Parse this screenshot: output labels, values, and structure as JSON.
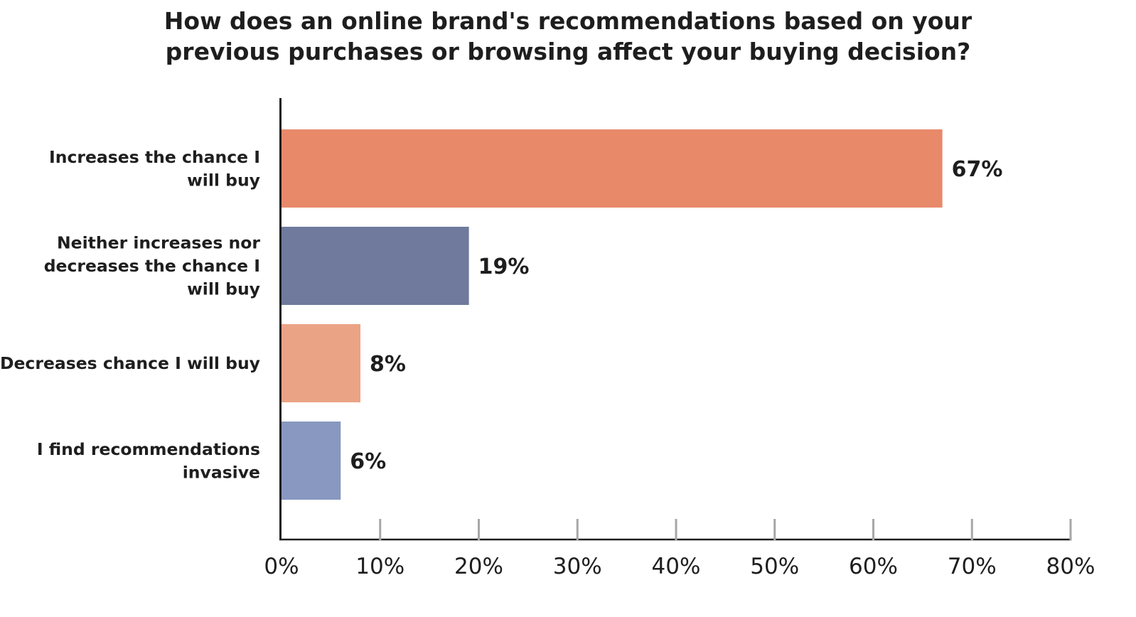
{
  "chart_data": {
    "type": "bar",
    "orientation": "horizontal",
    "title_lines": [
      "How does an online brand's recommendations based on your",
      "previous purchases or browsing affect your buying decision?"
    ],
    "categories": [
      [
        "Increases the chance I",
        "will buy"
      ],
      [
        "Neither increases nor",
        "decreases the chance I",
        "will buy"
      ],
      [
        "Decreases chance I will buy"
      ],
      [
        "I find recommendations",
        "invasive"
      ]
    ],
    "values": [
      67,
      19,
      8,
      6
    ],
    "data_labels": [
      "67%",
      "19%",
      "8%",
      "6%"
    ],
    "bar_colors": [
      "#e8896a",
      "#6f7a9c",
      "#eba385",
      "#8898c0"
    ],
    "xlim": [
      0,
      80
    ],
    "x_ticks": [
      0,
      10,
      20,
      30,
      40,
      50,
      60,
      70,
      80
    ],
    "x_tick_labels": [
      "0%",
      "10%",
      "20%",
      "30%",
      "40%",
      "50%",
      "60%",
      "70%",
      "80%"
    ],
    "xlabel": "",
    "ylabel": "",
    "grid": false,
    "legend": "none"
  }
}
